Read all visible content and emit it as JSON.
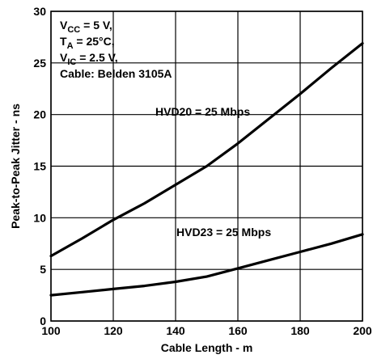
{
  "chart_data": {
    "type": "line",
    "xlabel": "Cable Length - m",
    "ylabel": "Peak-to-Peak Jitter - ns",
    "xlim": [
      100,
      200
    ],
    "ylim": [
      0,
      30
    ],
    "x_ticks": [
      100,
      120,
      140,
      160,
      180,
      200
    ],
    "y_ticks": [
      0,
      5,
      10,
      15,
      20,
      25,
      30
    ],
    "grid": true,
    "conditions": {
      "vcc": {
        "main": "V",
        "sub": "CC",
        "rest": " = 5 V,"
      },
      "ta": {
        "main": "T",
        "sub": "A",
        "rest": " = 25°C,"
      },
      "vic": {
        "main": "V",
        "sub": "IC",
        "rest": " = 2.5 V,"
      },
      "cable": "Cable: Belden 3105A"
    },
    "series": [
      {
        "name": "HVD20 = 25 Mbps",
        "x": [
          100,
          110,
          120,
          130,
          140,
          150,
          160,
          170,
          180,
          190,
          200
        ],
        "values": [
          6.3,
          8.0,
          9.8,
          11.4,
          13.2,
          15.0,
          17.2,
          19.6,
          22.0,
          24.5,
          26.9
        ]
      },
      {
        "name": "HVD23 = 25 Mbps",
        "x": [
          100,
          110,
          120,
          130,
          140,
          150,
          160,
          170,
          180,
          190,
          200
        ],
        "values": [
          2.5,
          2.8,
          3.1,
          3.4,
          3.8,
          4.3,
          5.1,
          5.9,
          6.7,
          7.5,
          8.4
        ]
      }
    ]
  }
}
